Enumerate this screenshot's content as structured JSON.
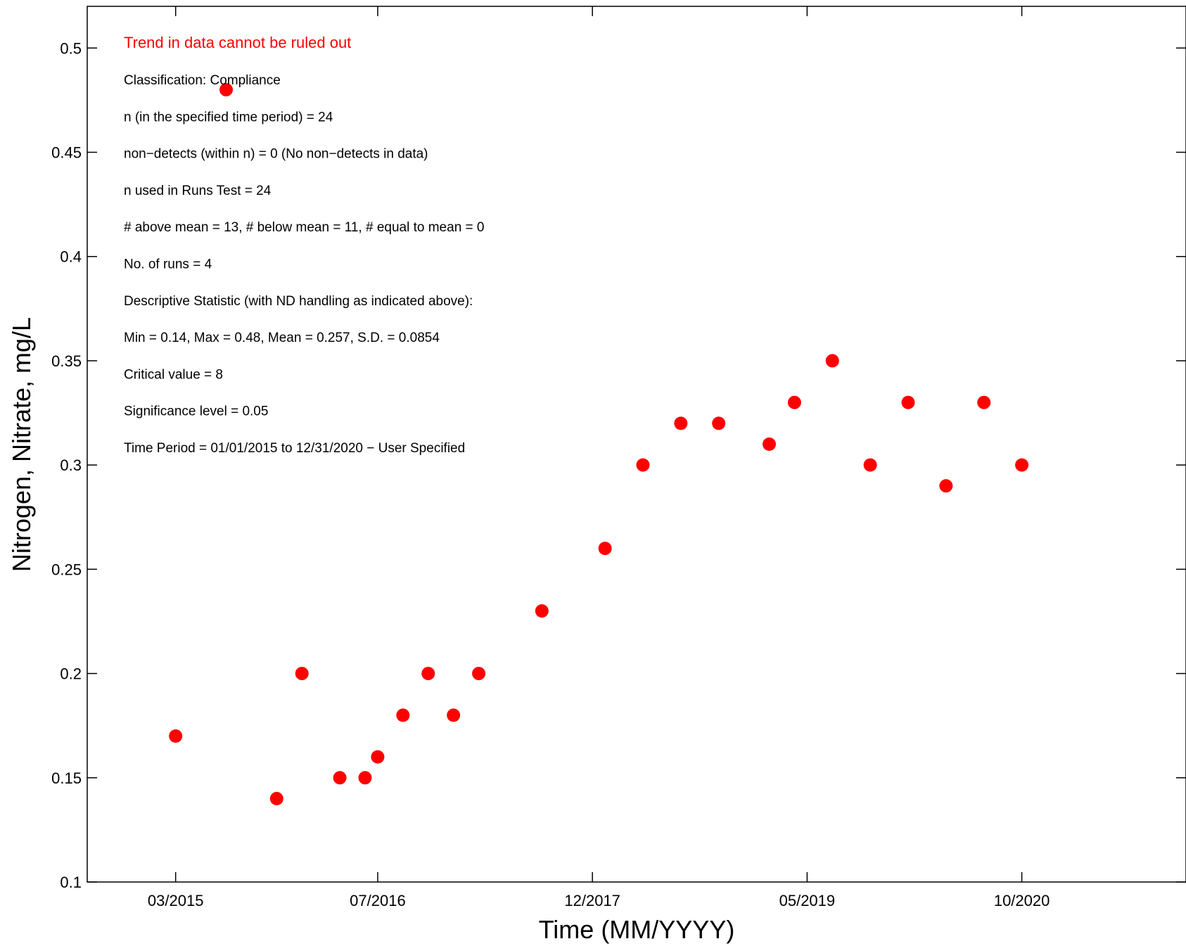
{
  "chart_data": {
    "type": "scatter",
    "xlabel": "Time (MM/YYYY)",
    "ylabel": "Nitrogen, Nitrate, mg/L",
    "x_ticks": [
      "03/2015",
      "07/2016",
      "12/2017",
      "05/2019",
      "10/2020"
    ],
    "y_ticks": [
      "0.1",
      "0.15",
      "0.2",
      "0.25",
      "0.3",
      "0.35",
      "0.4",
      "0.45",
      "0.5"
    ],
    "xlim": [
      "2014-08",
      "2021-11"
    ],
    "ylim": [
      0.1,
      0.52
    ],
    "grid": false,
    "marker_color": "#ff0000",
    "series": [
      {
        "points": [
          {
            "x": "2015-03",
            "y": 0.17
          },
          {
            "x": "2015-07",
            "y": 0.48
          },
          {
            "x": "2015-11",
            "y": 0.14
          },
          {
            "x": "2016-01",
            "y": 0.2
          },
          {
            "x": "2016-04",
            "y": 0.15
          },
          {
            "x": "2016-06",
            "y": 0.15
          },
          {
            "x": "2016-07",
            "y": 0.16
          },
          {
            "x": "2016-09",
            "y": 0.18
          },
          {
            "x": "2016-11",
            "y": 0.2
          },
          {
            "x": "2017-01",
            "y": 0.18
          },
          {
            "x": "2017-03",
            "y": 0.2
          },
          {
            "x": "2017-08",
            "y": 0.23
          },
          {
            "x": "2018-01",
            "y": 0.26
          },
          {
            "x": "2018-04",
            "y": 0.3
          },
          {
            "x": "2018-07",
            "y": 0.32
          },
          {
            "x": "2018-10",
            "y": 0.32
          },
          {
            "x": "2019-02",
            "y": 0.31
          },
          {
            "x": "2019-04",
            "y": 0.33
          },
          {
            "x": "2019-07",
            "y": 0.35
          },
          {
            "x": "2019-10",
            "y": 0.3
          },
          {
            "x": "2020-01",
            "y": 0.33
          },
          {
            "x": "2020-04",
            "y": 0.29
          },
          {
            "x": "2020-07",
            "y": 0.33
          },
          {
            "x": "2020-10",
            "y": 0.3
          }
        ]
      }
    ],
    "annotations": {
      "headline": "Trend in data cannot be ruled out",
      "headline_color": "#ff0000",
      "lines": [
        "Classification: Compliance",
        "n (in the specified time period) = 24",
        "non−detects (within n) = 0 (No non−detects in data)",
        "n used in Runs Test = 24",
        "# above mean = 13,  # below mean = 11,  # equal to mean = 0",
        "No. of runs = 4",
        "Descriptive Statistic (with ND handling as indicated above):",
        "Min = 0.14,  Max = 0.48,  Mean = 0.257,  S.D. = 0.0854",
        "Critical value = 8",
        "Significance level = 0.05",
        "Time Period = 01/01/2015 to 12/31/2020 − User Specified"
      ]
    }
  }
}
